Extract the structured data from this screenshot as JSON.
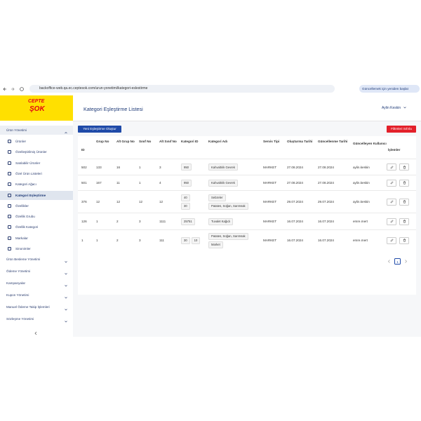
{
  "browser": {
    "url": "backoffice-web.qa.ec.ceptesok.com/urun-yonetimi/kategori-eslestirme",
    "update_button": "Güncellemek için yeniden başlat"
  },
  "sidebar": {
    "logo": [
      "CEPTE",
      "ŞOK"
    ],
    "menu": [
      {
        "label": "Ürün Yönetimi",
        "items": [
          "Ürünler",
          "Özelleştirilmiş Ürünler",
          "Satılabilir Ürünler",
          "Özel Ürün Listeleri",
          "Kategori Ağacı",
          "Kategori Eşleştirme",
          "Özellikler",
          "Özellik Grubu",
          "Özellik Kategori",
          "Markalar",
          "Sinonimler"
        ]
      },
      {
        "label": "Ürün Besleme Yönetimi"
      },
      {
        "label": "Ödeme Yönetimi"
      },
      {
        "label": "Kampanyalar"
      },
      {
        "label": "Kupon Yönetimi"
      },
      {
        "label": "Manuel Ödeme Takip İşlemleri"
      },
      {
        "label": "Sözleşme Yönetimi"
      }
    ],
    "active_item": "Kategori Eşleştirme"
  },
  "header": {
    "title": "Kategori Eşleştirme Listesi",
    "user": "Aylin Keskin"
  },
  "buttons": {
    "create": "Yeni Eşleştirme Oluştur",
    "reset": "Filtreleri Sıfırla"
  },
  "table": {
    "headers": [
      "ID",
      "Grup No",
      "Alt Grup No",
      "Sınıf No",
      "Alt Sınıf No",
      "Kategori ID",
      "Kategori Adı",
      "Servis Tipi",
      "Oluşturma Tarihi",
      "Güncellenme Tarihi",
      "Güncelleyen Kullanıcı",
      "İşlemler"
    ],
    "rows": [
      [
        "502",
        "133",
        "16",
        "1",
        "3",
        [
          "950"
        ],
        [
          "Kahvaltılık Gevrek"
        ],
        "MARKET",
        "27.08.2024",
        "27.08.2024",
        "aylin.keskin"
      ],
      [
        "501",
        "167",
        "11",
        "1",
        "4",
        [
          "950"
        ],
        [
          "Kahvaltılık Gevrek"
        ],
        "MARKET",
        "27.08.2024",
        "27.08.2024",
        "aylin.keskin"
      ],
      [
        "376",
        "12",
        "12",
        "12",
        "12",
        [
          "40",
          "30"
        ],
        [
          "Sebzeler",
          "Patates, Soğan, Sarımsak"
        ],
        "MARKET",
        "29.07.2024",
        "29.07.2024",
        "aylin.keskin"
      ],
      [
        "126",
        "1",
        "2",
        "3",
        "1111",
        [
          "25751"
        ],
        [
          "Tuvalet Kağıdı"
        ],
        "MARKET",
        "16.07.2024",
        "16.07.2024",
        "emre.mert"
      ],
      [
        "1",
        "1",
        "2",
        "3",
        "111",
        [
          "30",
          "10"
        ],
        [
          "Patates, Soğan, Sarımsak",
          "Market"
        ],
        "MARKET",
        "16.07.2024",
        "16.07.2024",
        "emre.mert"
      ]
    ]
  },
  "pagination": {
    "current": "1"
  }
}
